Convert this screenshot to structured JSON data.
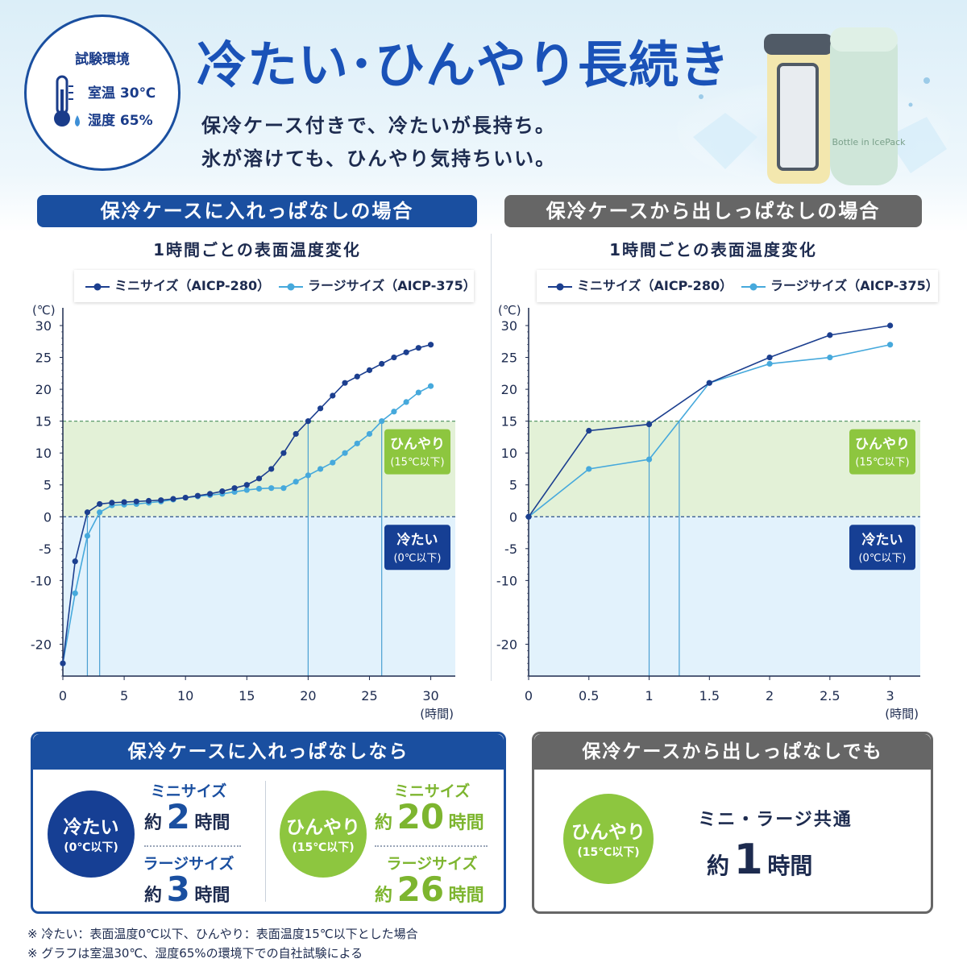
{
  "env": {
    "title": "試験環境",
    "temp": "室温 30℃",
    "humidity": "湿度 65%"
  },
  "headline": "冷たい･ひんやり長続き",
  "subtitle_lines": [
    "保冷ケース付きで、冷たいが長持ち。",
    "氷が溶けても、ひんやり気持ちいい。"
  ],
  "product_label": "Bottle in IcePack",
  "colors": {
    "mini": "#1c3f8f",
    "large": "#46a9dc",
    "green_zone": "#e3f1d7",
    "blue_zone": "#e2f2fc",
    "badge_blue": "#163f94",
    "badge_green": "#8dc63f",
    "bar_blue": "#1a4fa0",
    "bar_gray": "#666666"
  },
  "chart_data": [
    {
      "type": "line",
      "header": "保冷ケースに入れっぱなしの場合",
      "title": "1時間ごとの表面温度変化",
      "ylabel": "(℃)",
      "xlabel": "(時間)",
      "xlim": [
        0,
        32
      ],
      "ylim": [
        -25,
        30
      ],
      "xticks": [
        0,
        5,
        10,
        15,
        20,
        25,
        30
      ],
      "yticks": [
        30,
        25,
        20,
        15,
        10,
        5,
        0,
        -5,
        -10,
        -20
      ],
      "grid": false,
      "legend": "top",
      "series": [
        {
          "name": "ミニサイズ（AICP-280）",
          "color": "#1c3f8f",
          "x": [
            0,
            1,
            2,
            3,
            4,
            5,
            6,
            7,
            8,
            9,
            10,
            11,
            12,
            13,
            14,
            15,
            16,
            17,
            18,
            19,
            20,
            21,
            22,
            23,
            24,
            25,
            26,
            27,
            28,
            29,
            30
          ],
          "y": [
            -23,
            -7,
            0.7,
            2,
            2.2,
            2.3,
            2.4,
            2.5,
            2.6,
            2.8,
            3,
            3.3,
            3.6,
            4,
            4.5,
            5,
            6,
            7.5,
            10,
            13,
            15,
            17,
            19,
            21,
            22,
            23,
            24,
            25,
            25.8,
            26.5,
            27
          ]
        },
        {
          "name": "ラージサイズ（AICP-375）",
          "color": "#46a9dc",
          "x": [
            0,
            1,
            2,
            3,
            4,
            5,
            6,
            7,
            8,
            9,
            10,
            11,
            12,
            13,
            14,
            15,
            16,
            17,
            18,
            19,
            20,
            21,
            22,
            23,
            24,
            25,
            26,
            27,
            28,
            29,
            30
          ],
          "y": [
            -23,
            -12,
            -3,
            0.7,
            1.8,
            1.9,
            2,
            2.2,
            2.4,
            2.7,
            3,
            3.2,
            3.4,
            3.6,
            3.9,
            4.2,
            4.4,
            4.5,
            4.5,
            5.5,
            6.5,
            7.5,
            8.5,
            10,
            11.5,
            13,
            15,
            16.5,
            18,
            19.5,
            20.5
          ]
        }
      ],
      "zones": [
        {
          "label": "ひんやり",
          "sub": "(15℃以下)",
          "from": 0,
          "to": 15,
          "color": "#8dc63f"
        },
        {
          "label": "冷たい",
          "sub": "(0℃以下)",
          "from": -25,
          "to": 0,
          "color": "#163f94"
        }
      ],
      "threshold_lines": [
        15,
        0
      ],
      "markers_x": [
        2,
        3,
        20,
        26
      ]
    },
    {
      "type": "line",
      "header": "保冷ケースから出しっぱなしの場合",
      "title": "1時間ごとの表面温度変化",
      "ylabel": "(℃)",
      "xlabel": "(時間)",
      "xlim": [
        0,
        3.25
      ],
      "ylim": [
        -25,
        30
      ],
      "xticks": [
        0,
        0.5,
        1,
        1.5,
        2,
        2.5,
        3
      ],
      "yticks": [
        30,
        25,
        20,
        15,
        10,
        5,
        0,
        -5,
        -10,
        -20
      ],
      "grid": false,
      "legend": "top",
      "series": [
        {
          "name": "ミニサイズ（AICP-280）",
          "color": "#1c3f8f",
          "x": [
            0,
            0.5,
            1,
            1.5,
            2,
            2.5,
            3
          ],
          "y": [
            0,
            13.5,
            14.5,
            21,
            25,
            28.5,
            30
          ]
        },
        {
          "name": "ラージサイズ（AICP-375）",
          "color": "#46a9dc",
          "x": [
            0,
            0.5,
            1,
            1.5,
            2,
            2.5,
            3
          ],
          "y": [
            0,
            7.5,
            9,
            21,
            24,
            25,
            27
          ]
        }
      ],
      "zones": [
        {
          "label": "ひんやり",
          "sub": "(15℃以下)",
          "from": 0,
          "to": 15,
          "color": "#8dc63f"
        },
        {
          "label": "冷たい",
          "sub": "(0℃以下)",
          "from": -25,
          "to": 0,
          "color": "#163f94"
        }
      ],
      "threshold_lines": [
        15,
        0
      ],
      "markers_x": [
        1,
        1.25
      ]
    }
  ],
  "summary_left": {
    "header": "保冷ケースに入れっぱなしなら",
    "cold": {
      "badge": "冷たい",
      "badge_sub": "(0℃以下)",
      "mini_label": "ミニサイズ",
      "mini_prefix": "約",
      "mini_value": "2",
      "mini_unit": "時間",
      "large_label": "ラージサイズ",
      "large_prefix": "約",
      "large_value": "3",
      "large_unit": "時間"
    },
    "cool": {
      "badge": "ひんやり",
      "badge_sub": "(15℃以下)",
      "mini_label": "ミニサイズ",
      "mini_prefix": "約",
      "mini_value": "20",
      "mini_unit": "時間",
      "large_label": "ラージサイズ",
      "large_prefix": "約",
      "large_value": "26",
      "large_unit": "時間"
    }
  },
  "summary_right": {
    "header": "保冷ケースから出しっぱなしでも",
    "badge": "ひんやり",
    "badge_sub": "(15℃以下)",
    "label": "ミニ・ラージ共通",
    "prefix": "約",
    "value": "1",
    "unit": "時間"
  },
  "notes": [
    "※ 冷たい：表面温度0℃以下、ひんやり：表面温度15℃以下とした場合",
    "※ グラフは室温30℃、湿度65%の環境下での自社試験による"
  ]
}
